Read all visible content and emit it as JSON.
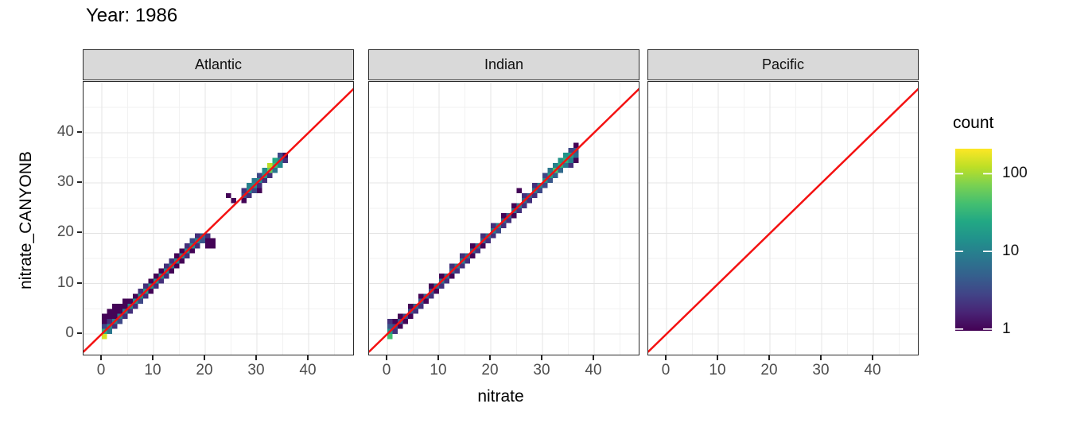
{
  "title": "Year: 1986",
  "axes": {
    "x_title": "nitrate",
    "y_title": "nitrate_CANYONB"
  },
  "legend": {
    "title": "count",
    "tick_values": [
      100,
      10,
      1
    ],
    "tick_labels": [
      "100",
      "10",
      "1"
    ]
  },
  "colors": {
    "identity_line": "#F41111",
    "strip_bg": "#D9D9D9",
    "strip_border": "#2B2B2B",
    "panel_border": "#2B2B2B",
    "grid_major": "#E4E4E4",
    "grid_minor": "#F2F2F2",
    "tick_label": "#4D4D4D",
    "title_text": "#000000",
    "viridis": [
      "#440154",
      "#482475",
      "#414487",
      "#355F8D",
      "#2A788E",
      "#21918C",
      "#22A884",
      "#44BF70",
      "#7AD151",
      "#BDDF26",
      "#FDE725"
    ]
  },
  "chart_data": {
    "type": "heatmap",
    "subtype": "bin2d",
    "title": "Year: 1986",
    "xlabel": "nitrate",
    "ylabel": "nitrate_CANYONB",
    "xlim": [
      -3.5,
      48.9
    ],
    "ylim": [
      -4.6,
      49.9
    ],
    "x_ticks": [
      0,
      10,
      20,
      30,
      40
    ],
    "y_ticks": [
      0,
      10,
      20,
      30,
      40
    ],
    "minor_ticks": [
      5,
      15,
      25,
      35,
      45
    ],
    "grid": true,
    "binwidth": 1,
    "color_scale": {
      "palette": "viridis",
      "transform": "log10",
      "legend_title": "count",
      "legend_ticks": [
        1,
        10,
        100
      ],
      "domain": [
        0.95,
        210
      ]
    },
    "reference_line": {
      "type": "identity y=x",
      "color": "red"
    },
    "legend_position": "right",
    "facets": [
      {
        "label": "Atlantic",
        "bins": [
          [
            0.5,
            -0.5,
            150
          ],
          [
            0.5,
            0.5,
            30
          ],
          [
            1.5,
            1.5,
            12
          ],
          [
            2.5,
            2.5,
            10
          ],
          [
            3.5,
            3.5,
            9
          ],
          [
            4.5,
            4.5,
            10
          ],
          [
            5.5,
            5.5,
            12
          ],
          [
            6.5,
            6.5,
            14
          ],
          [
            7.5,
            7.5,
            15
          ],
          [
            8.5,
            8.5,
            18
          ],
          [
            9.5,
            9.5,
            16
          ],
          [
            10.5,
            10.5,
            15
          ],
          [
            11.5,
            11.5,
            14
          ],
          [
            12.5,
            12.5,
            12
          ],
          [
            13.5,
            13.5,
            10
          ],
          [
            14.5,
            14.5,
            12
          ],
          [
            15.5,
            15.5,
            10
          ],
          [
            16.5,
            16.5,
            12
          ],
          [
            17.5,
            17.5,
            14
          ],
          [
            18.5,
            18.5,
            10
          ],
          [
            19.5,
            19.5,
            5
          ],
          [
            20.5,
            19.5,
            2
          ],
          [
            0.5,
            1.5,
            3
          ],
          [
            1.5,
            2.5,
            2
          ],
          [
            2.5,
            3.5,
            1
          ],
          [
            3.5,
            4.5,
            1
          ],
          [
            4.5,
            5.5,
            1
          ],
          [
            5.5,
            6.5,
            1
          ],
          [
            6.5,
            7.5,
            1
          ],
          [
            7.5,
            8.5,
            2
          ],
          [
            8.5,
            9.5,
            2
          ],
          [
            9.5,
            10.5,
            1
          ],
          [
            10.5,
            11.5,
            1
          ],
          [
            11.5,
            12.5,
            1
          ],
          [
            12.5,
            13.5,
            2
          ],
          [
            13.5,
            14.5,
            2
          ],
          [
            14.5,
            15.5,
            1
          ],
          [
            15.5,
            16.5,
            1
          ],
          [
            16.5,
            17.5,
            2
          ],
          [
            17.5,
            18.5,
            3
          ],
          [
            18.5,
            19.5,
            2
          ],
          [
            1.5,
            0.5,
            8
          ],
          [
            2.5,
            1.5,
            2
          ],
          [
            3.5,
            2.5,
            3
          ],
          [
            4.5,
            3.5,
            2
          ],
          [
            5.5,
            4.5,
            2
          ],
          [
            6.5,
            5.5,
            2
          ],
          [
            7.5,
            6.5,
            3
          ],
          [
            8.5,
            7.5,
            2
          ],
          [
            9.5,
            8.5,
            1
          ],
          [
            10.5,
            9.5,
            2
          ],
          [
            11.5,
            10.5,
            2
          ],
          [
            12.5,
            11.5,
            2
          ],
          [
            13.5,
            12.5,
            1
          ],
          [
            14.5,
            13.5,
            1
          ],
          [
            15.5,
            14.5,
            1
          ],
          [
            16.5,
            15.5,
            2
          ],
          [
            17.5,
            16.5,
            1
          ],
          [
            18.5,
            17.5,
            2
          ],
          [
            19.5,
            18.5,
            4
          ],
          [
            20.5,
            18.5,
            1
          ],
          [
            21.5,
            18.5,
            1
          ],
          [
            21.5,
            17.5,
            1
          ],
          [
            20.5,
            17.5,
            1
          ],
          [
            0.5,
            2.5,
            1
          ],
          [
            0.5,
            3.5,
            1
          ],
          [
            1.5,
            3.5,
            1
          ],
          [
            1.5,
            4.5,
            1
          ],
          [
            2.5,
            4.5,
            1
          ],
          [
            2.5,
            5.5,
            1
          ],
          [
            3.5,
            5.5,
            1
          ],
          [
            4.5,
            6.5,
            1
          ],
          [
            24.5,
            27.5,
            1
          ],
          [
            25.5,
            26.5,
            1
          ],
          [
            27.5,
            26.5,
            1
          ],
          [
            27.5,
            27.5,
            4
          ],
          [
            28.5,
            27.5,
            2
          ],
          [
            27.5,
            28.5,
            2
          ],
          [
            28.5,
            28.5,
            12
          ],
          [
            29.5,
            28.5,
            3
          ],
          [
            30.5,
            28.5,
            1
          ],
          [
            28.5,
            29.5,
            10
          ],
          [
            29.5,
            29.5,
            15
          ],
          [
            30.5,
            29.5,
            2
          ],
          [
            29.5,
            30.5,
            8
          ],
          [
            30.5,
            30.5,
            14
          ],
          [
            31.5,
            30.5,
            2
          ],
          [
            30.5,
            31.5,
            3
          ],
          [
            31.5,
            31.5,
            18
          ],
          [
            32.5,
            31.5,
            2
          ],
          [
            31.5,
            32.5,
            12
          ],
          [
            32.5,
            32.5,
            60
          ],
          [
            33.5,
            32.5,
            8
          ],
          [
            32.5,
            33.5,
            120
          ],
          [
            33.5,
            33.5,
            40
          ],
          [
            34.5,
            33.5,
            12
          ],
          [
            33.5,
            34.5,
            25
          ],
          [
            34.5,
            34.5,
            10
          ],
          [
            35.5,
            34.5,
            2
          ],
          [
            34.5,
            35.5,
            3
          ],
          [
            35.5,
            35.5,
            1
          ]
        ]
      },
      {
        "label": "Indian",
        "bins": [
          [
            0.5,
            -0.5,
            40
          ],
          [
            0.5,
            0.5,
            15
          ],
          [
            1.5,
            1.5,
            3
          ],
          [
            2.5,
            2.5,
            4
          ],
          [
            3.5,
            3.5,
            3
          ],
          [
            4.5,
            4.5,
            4
          ],
          [
            5.5,
            5.5,
            5
          ],
          [
            6.5,
            6.5,
            4
          ],
          [
            7.5,
            7.5,
            5
          ],
          [
            8.5,
            8.5,
            4
          ],
          [
            9.5,
            9.5,
            6
          ],
          [
            10.5,
            10.5,
            8
          ],
          [
            11.5,
            11.5,
            6
          ],
          [
            12.5,
            12.5,
            5
          ],
          [
            13.5,
            13.5,
            8
          ],
          [
            14.5,
            14.5,
            10
          ],
          [
            15.5,
            15.5,
            6
          ],
          [
            16.5,
            16.5,
            5
          ],
          [
            17.5,
            17.5,
            6
          ],
          [
            18.5,
            18.5,
            5
          ],
          [
            19.5,
            19.5,
            7
          ],
          [
            20.5,
            20.5,
            9
          ],
          [
            21.5,
            21.5,
            10
          ],
          [
            22.5,
            22.5,
            6
          ],
          [
            23.5,
            23.5,
            5
          ],
          [
            24.5,
            24.5,
            7
          ],
          [
            25.5,
            25.5,
            8
          ],
          [
            26.5,
            26.5,
            6
          ],
          [
            27.5,
            27.5,
            5
          ],
          [
            28.5,
            28.5,
            8
          ],
          [
            29.5,
            29.5,
            10
          ],
          [
            30.5,
            30.5,
            14
          ],
          [
            31.5,
            31.5,
            20
          ],
          [
            32.5,
            32.5,
            45
          ],
          [
            33.5,
            33.5,
            30
          ],
          [
            34.5,
            34.5,
            30
          ],
          [
            35.5,
            35.5,
            20
          ],
          [
            36.5,
            36.5,
            4
          ],
          [
            0.5,
            1.5,
            4
          ],
          [
            0.5,
            2.5,
            2
          ],
          [
            1.5,
            2.5,
            1
          ],
          [
            2.5,
            3.5,
            1
          ],
          [
            4.5,
            5.5,
            1
          ],
          [
            6.5,
            7.5,
            1
          ],
          [
            8.5,
            9.5,
            1
          ],
          [
            10.5,
            11.5,
            1
          ],
          [
            12.5,
            13.5,
            2
          ],
          [
            14.5,
            15.5,
            2
          ],
          [
            16.5,
            17.5,
            1
          ],
          [
            18.5,
            19.5,
            2
          ],
          [
            20.5,
            21.5,
            2
          ],
          [
            22.5,
            23.5,
            1
          ],
          [
            24.5,
            25.5,
            1
          ],
          [
            26.5,
            27.5,
            2
          ],
          [
            28.5,
            29.5,
            2
          ],
          [
            30.5,
            31.5,
            3
          ],
          [
            31.5,
            32.5,
            8
          ],
          [
            32.5,
            33.5,
            10
          ],
          [
            33.5,
            34.5,
            15
          ],
          [
            34.5,
            35.5,
            15
          ],
          [
            35.5,
            36.5,
            3
          ],
          [
            36.5,
            37.5,
            1
          ],
          [
            1.5,
            0.5,
            2
          ],
          [
            2.5,
            1.5,
            1
          ],
          [
            3.5,
            2.5,
            1
          ],
          [
            4.5,
            3.5,
            1
          ],
          [
            5.5,
            4.5,
            2
          ],
          [
            6.5,
            5.5,
            2
          ],
          [
            7.5,
            6.5,
            1
          ],
          [
            8.5,
            7.5,
            2
          ],
          [
            9.5,
            8.5,
            1
          ],
          [
            10.5,
            9.5,
            2
          ],
          [
            11.5,
            10.5,
            2
          ],
          [
            12.5,
            11.5,
            1
          ],
          [
            13.5,
            12.5,
            2
          ],
          [
            14.5,
            13.5,
            2
          ],
          [
            15.5,
            14.5,
            2
          ],
          [
            16.5,
            15.5,
            1
          ],
          [
            17.5,
            16.5,
            2
          ],
          [
            18.5,
            17.5,
            1
          ],
          [
            19.5,
            18.5,
            2
          ],
          [
            20.5,
            19.5,
            2
          ],
          [
            21.5,
            20.5,
            3
          ],
          [
            22.5,
            21.5,
            2
          ],
          [
            23.5,
            22.5,
            2
          ],
          [
            24.5,
            23.5,
            1
          ],
          [
            25.5,
            24.5,
            2
          ],
          [
            26.5,
            25.5,
            2
          ],
          [
            27.5,
            26.5,
            2
          ],
          [
            28.5,
            27.5,
            2
          ],
          [
            29.5,
            28.5,
            3
          ],
          [
            30.5,
            29.5,
            3
          ],
          [
            31.5,
            30.5,
            4
          ],
          [
            32.5,
            31.5,
            5
          ],
          [
            33.5,
            32.5,
            6
          ],
          [
            34.5,
            33.5,
            8
          ],
          [
            35.5,
            34.5,
            10
          ],
          [
            36.5,
            35.5,
            6
          ],
          [
            25.5,
            28.5,
            1
          ],
          [
            36.5,
            34.5,
            1
          ],
          [
            35.5,
            33.5,
            2
          ]
        ]
      },
      {
        "label": "Pacific",
        "bins": []
      }
    ]
  }
}
